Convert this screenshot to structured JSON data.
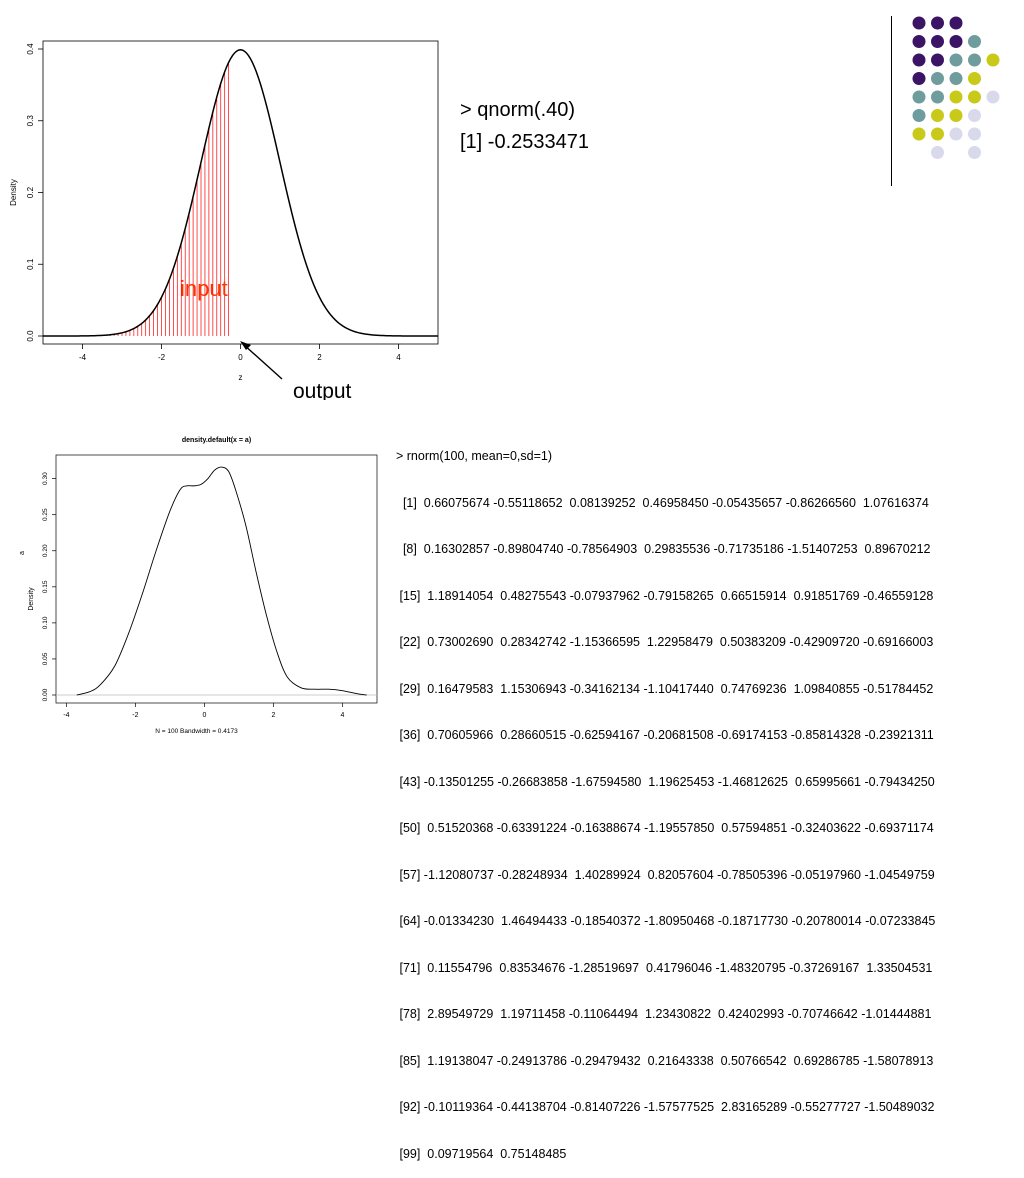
{
  "chart_data": [
    {
      "type": "line",
      "xlabel": "z",
      "ylabel": "Density",
      "xlim": [
        -5,
        5
      ],
      "ylim": [
        0,
        0.4
      ],
      "x_ticks": [
        -4,
        -2,
        0,
        2,
        4
      ],
      "y_ticks": [
        0.0,
        0.1,
        0.2,
        0.3,
        0.4
      ],
      "y_tick_labels": [
        "0.0",
        "0.1",
        "0.2",
        "0.3",
        "0.4"
      ],
      "shaded_upper_bound": -0.2533471,
      "annotations": [
        {
          "text": "input",
          "color": "#ff3300"
        },
        {
          "text": "output",
          "color": "#000000"
        }
      ],
      "curve": "standard normal density",
      "fill_color": "#ff0000"
    },
    {
      "type": "line",
      "title": "density.default(x = a)",
      "xlabel": "N = 100   Bandwidth = 0.4173",
      "ylabel": "Density",
      "side_label": "a",
      "xlim": [
        -4.3,
        5.0
      ],
      "ylim": [
        0,
        0.33
      ],
      "x_ticks": [
        -4,
        -2,
        0,
        2,
        4
      ],
      "y_ticks": [
        0.0,
        0.05,
        0.1,
        0.15,
        0.2,
        0.25,
        0.3
      ],
      "y_tick_labels": [
        "0.00",
        "0.05",
        "0.10",
        "0.15",
        "0.20",
        "0.25",
        "0.30"
      ],
      "x": [
        -3.7,
        -3.3,
        -3.0,
        -2.6,
        -2.2,
        -1.8,
        -1.4,
        -1.0,
        -0.7,
        -0.5,
        -0.3,
        -0.1,
        0.1,
        0.3,
        0.5,
        0.7,
        0.9,
        1.2,
        1.5,
        1.8,
        2.1,
        2.4,
        2.8,
        3.2,
        3.6,
        4.0,
        4.4,
        4.7
      ],
      "y": [
        0.0,
        0.005,
        0.015,
        0.04,
        0.085,
        0.14,
        0.2,
        0.255,
        0.285,
        0.29,
        0.29,
        0.292,
        0.3,
        0.312,
        0.316,
        0.31,
        0.285,
        0.235,
        0.17,
        0.11,
        0.06,
        0.025,
        0.01,
        0.008,
        0.008,
        0.006,
        0.002,
        0.0
      ]
    }
  ],
  "qnorm": {
    "command": "> qnorm(.40)",
    "result": "[1] -0.2533471"
  },
  "rnorm": {
    "command": "> rnorm(100, mean=0,sd=1)",
    "lines": [
      "  [1]  0.66075674 -0.55118652  0.08139252  0.46958450 -0.05435657 -0.86266560  1.07616374",
      "  [8]  0.16302857 -0.89804740 -0.78564903  0.29835536 -0.71735186 -1.51407253  0.89670212",
      " [15]  1.18914054  0.48275543 -0.07937962 -0.79158265  0.66515914  0.91851769 -0.46559128",
      " [22]  0.73002690  0.28342742 -1.15366595  1.22958479  0.50383209 -0.42909720 -0.69166003",
      " [29]  0.16479583  1.15306943 -0.34162134 -1.10417440  0.74769236  1.09840855 -0.51784452",
      " [36]  0.70605966  0.28660515 -0.62594167 -0.20681508 -0.69174153 -0.85814328 -0.23921311",
      " [43] -0.13501255 -0.26683858 -1.67594580  1.19625453 -1.46812625  0.65995661 -0.79434250",
      " [50]  0.51520368 -0.63391224 -0.16388674 -1.19557850  0.57594851 -0.32403622 -0.69371174",
      " [57] -1.12080737 -0.28248934  1.40289924  0.82057604 -0.78505396 -0.05197960 -1.04549759",
      " [64] -0.01334230  1.46494433 -0.18540372 -1.80950468 -0.18717730 -0.20780014 -0.07233845",
      " [71]  0.11554796  0.83534676 -1.28519697  0.41796046 -1.48320795 -0.37269167  1.33504531",
      " [78]  2.89549729  1.19711458 -0.11064494  1.23430822  0.42402993 -0.70746642 -1.01444881",
      " [85]  1.19138047 -0.24913786 -0.29479432  0.21643338  0.50766542  0.69286785 -1.58078913",
      " [92] -0.10119364 -0.44138704 -0.81407226 -1.57577525  2.83165289 -0.55277727 -1.50489032",
      " [99]  0.09719564  0.75148485"
    ]
  },
  "palette": {
    "colors": [
      "#3b1466",
      "#6f9c9c",
      "#c9c91a",
      "#d9d9ec"
    ],
    "rows": [
      [
        0,
        0,
        0,
        -1
      ],
      [
        0,
        0,
        0,
        1
      ],
      [
        0,
        0,
        1,
        1,
        2
      ],
      [
        0,
        1,
        1,
        2
      ],
      [
        1,
        1,
        2,
        2,
        3
      ],
      [
        1,
        2,
        2,
        3
      ],
      [
        2,
        2,
        3,
        3
      ],
      [
        -1,
        3,
        -1,
        3
      ]
    ]
  }
}
